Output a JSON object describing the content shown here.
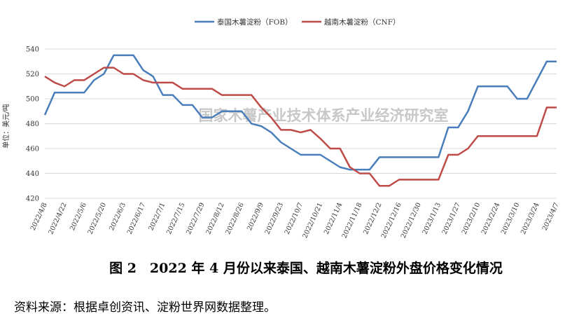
{
  "chart_data": {
    "type": "line",
    "legend": "top",
    "grid": true,
    "y_label": "单位：美元/吨",
    "watermark": "国家木薯产业技术体系产业经济研究室",
    "caption": "图 2　2022 年 4 月份以来泰国、越南木薯淀粉外盘价格变化情况",
    "source": "资料来源：根据卓创资讯、淀粉世界网数据整理。",
    "categories": [
      "2022/4/8",
      null,
      "2022/4/22",
      null,
      "2022/5/6",
      null,
      "2022/5/20",
      null,
      "2022/6/3",
      null,
      "2022/6/17",
      null,
      "2022/7/1",
      null,
      "2022/7/15",
      null,
      "2022/7/29",
      null,
      "2022/8/12",
      null,
      "2022/8/26",
      null,
      "2022/9/9",
      null,
      "2022/9/23",
      null,
      "2022/10/7",
      null,
      "2022/10/21",
      null,
      "2022/11/4",
      null,
      "2022/11/18",
      null,
      "2022/12/2",
      null,
      "2022/12/16",
      null,
      "2022/12/30",
      null,
      "2023/1/13",
      null,
      "2023/1/27",
      null,
      "2023/2/10",
      null,
      "2023/2/24",
      null,
      "2023/3/10",
      null,
      "2023/3/24",
      null,
      "2023/4/7"
    ],
    "series": [
      {
        "name": "泰国木薯淀粉（FOB）",
        "color": "#4a7ebb",
        "values": [
          487,
          505,
          505,
          505,
          505,
          515,
          520,
          535,
          535,
          535,
          523,
          518,
          503,
          503,
          495,
          495,
          485,
          485,
          490,
          490,
          490,
          480,
          478,
          473,
          465,
          460,
          455,
          455,
          455,
          450,
          445,
          443,
          443,
          443,
          453,
          453,
          453,
          453,
          453,
          453,
          453,
          477,
          477,
          490,
          510,
          510,
          510,
          510,
          500,
          500,
          515,
          530,
          530
        ]
      },
      {
        "name": "越南木薯淀粉（CNF）",
        "color": "#be4b48",
        "values": [
          518,
          513,
          510,
          515,
          515,
          520,
          525,
          525,
          520,
          520,
          515,
          513,
          513,
          513,
          508,
          508,
          508,
          508,
          503,
          503,
          503,
          503,
          493,
          485,
          475,
          475,
          473,
          475,
          468,
          460,
          460,
          445,
          440,
          440,
          430,
          430,
          435,
          435,
          435,
          435,
          435,
          455,
          455,
          460,
          470,
          470,
          470,
          470,
          470,
          470,
          470,
          493,
          493
        ]
      }
    ],
    "ylim": [
      420,
      540
    ],
    "yticks": [
      420,
      440,
      460,
      480,
      500,
      520,
      540
    ]
  }
}
